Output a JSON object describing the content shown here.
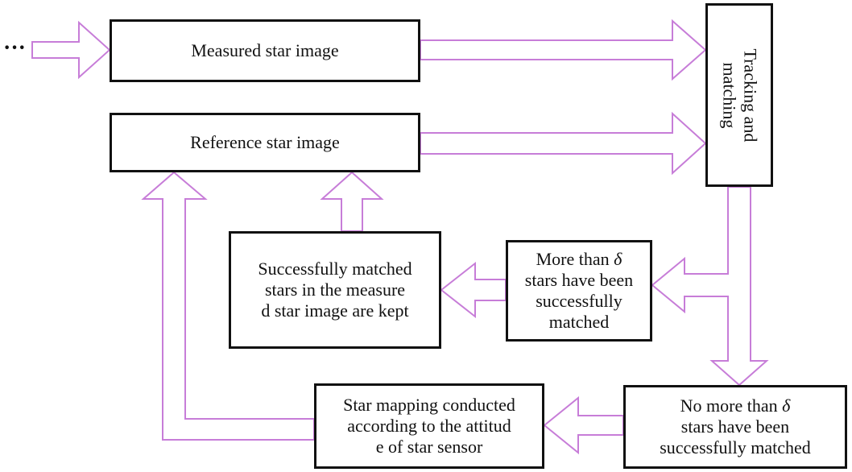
{
  "ellipsis": "···",
  "boxes": {
    "measured": "Measured star image",
    "reference": "Reference star image",
    "tracking": "Tracking and matching",
    "more_than": "More than δ stars have been successfully matched",
    "kept": "Successfully matched stars in the measured star image are kept",
    "no_more_than": "No more than δ stars have been successfully matched",
    "mapping": "Star mapping conducted according to the attitude of star sensor"
  },
  "colors": {
    "arrow_outline": "#c77dd8",
    "box_border": "#111111"
  }
}
